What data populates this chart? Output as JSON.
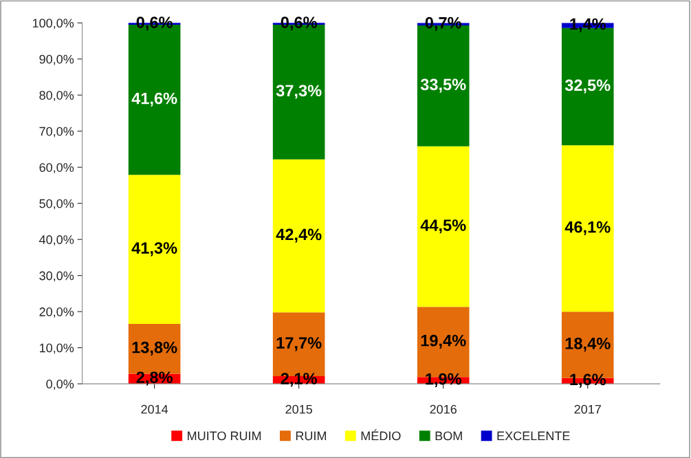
{
  "chart_data": {
    "type": "bar",
    "stacked": true,
    "categories": [
      "2014",
      "2015",
      "2016",
      "2017"
    ],
    "series": [
      {
        "name": "MUITO RUIM",
        "color": "#ff0000",
        "values": [
          2.8,
          2.1,
          1.9,
          1.6
        ],
        "value_labels": [
          "2,8%",
          "2,1%",
          "1,9%",
          "1,6%"
        ]
      },
      {
        "name": "RUIM",
        "color": "#e46c0a",
        "values": [
          13.8,
          17.7,
          19.4,
          18.4
        ],
        "value_labels": [
          "13,8%",
          "17,7%",
          "19,4%",
          "18,4%"
        ]
      },
      {
        "name": "MÉDIO",
        "color": "#ffff00",
        "values": [
          41.3,
          42.4,
          44.5,
          46.1
        ],
        "value_labels": [
          "41,3%",
          "42,4%",
          "44,5%",
          "46,1%"
        ]
      },
      {
        "name": "BOM",
        "color": "#008000",
        "values": [
          41.6,
          37.3,
          33.5,
          32.5
        ],
        "value_labels": [
          "41,6%",
          "37,3%",
          "33,5%",
          "32,5%"
        ]
      },
      {
        "name": "EXCELENTE",
        "color": "#0000cc",
        "values": [
          0.6,
          0.6,
          0.7,
          1.4
        ],
        "value_labels": [
          "0,6%",
          "0,6%",
          "0,7%",
          "1,4%"
        ]
      }
    ],
    "ylim": [
      0,
      100
    ],
    "yticks": [
      {
        "value": 0,
        "label": "0,0%"
      },
      {
        "value": 10,
        "label": "10,0%"
      },
      {
        "value": 20,
        "label": "20,0%"
      },
      {
        "value": 30,
        "label": "30,0%"
      },
      {
        "value": 40,
        "label": "40,0%"
      },
      {
        "value": 50,
        "label": "50,0%"
      },
      {
        "value": 60,
        "label": "60,0%"
      },
      {
        "value": 70,
        "label": "70,0%"
      },
      {
        "value": 80,
        "label": "80,0%"
      },
      {
        "value": 90,
        "label": "90,0%"
      },
      {
        "value": 100,
        "label": "100,0%"
      }
    ],
    "grid": false,
    "legend": "bottom"
  }
}
